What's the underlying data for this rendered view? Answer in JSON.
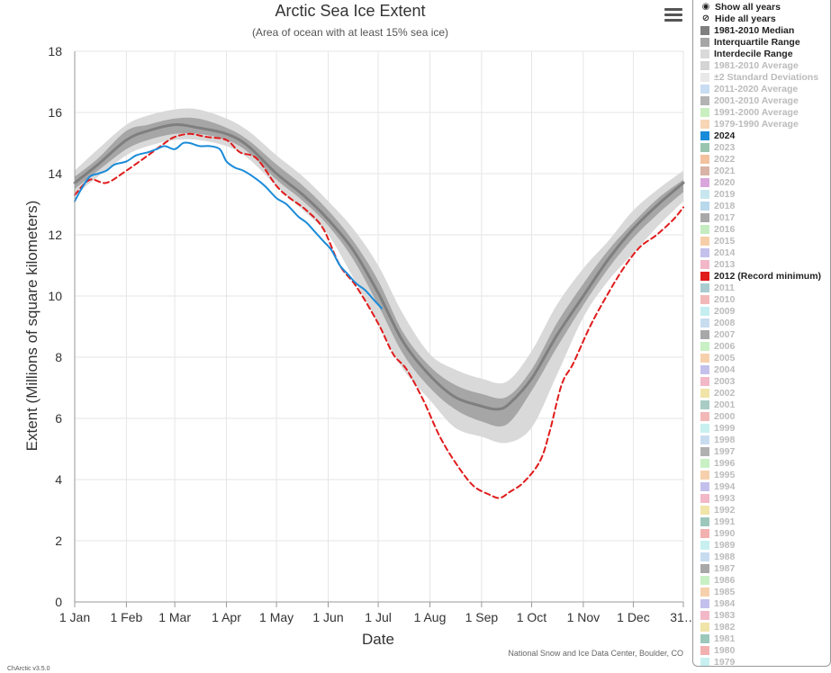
{
  "chart_data": {
    "type": "line",
    "title": "Arctic Sea Ice Extent",
    "subtitle": "(Area of ocean with at least 15% sea ice)",
    "xlabel": "Date",
    "ylabel": "Extent (Millions of square kilometers)",
    "ylim": [
      0,
      18
    ],
    "yticks": [
      0,
      2,
      4,
      6,
      8,
      10,
      12,
      14,
      16,
      18
    ],
    "xlim": [
      1,
      366
    ],
    "xticks": [
      {
        "day": 1,
        "label": "1 Jan"
      },
      {
        "day": 32,
        "label": "1 Feb"
      },
      {
        "day": 61,
        "label": "1 Mar"
      },
      {
        "day": 92,
        "label": "1 Apr"
      },
      {
        "day": 122,
        "label": "1 May"
      },
      {
        "day": 153,
        "label": "1 Jun"
      },
      {
        "day": 183,
        "label": "1 Jul"
      },
      {
        "day": 214,
        "label": "1 Aug"
      },
      {
        "day": 245,
        "label": "1 Sep"
      },
      {
        "day": 275,
        "label": "1 Oct"
      },
      {
        "day": 306,
        "label": "1 Nov"
      },
      {
        "day": 336,
        "label": "1 Dec"
      },
      {
        "day": 366,
        "label": "31…"
      }
    ],
    "grid": true,
    "credit": "National Snow and Ice Data Center, Boulder, CO",
    "series": [
      {
        "name": "Interdecile Range",
        "kind": "band",
        "color": "#d9d9d9",
        "x": [
          1,
          15,
          32,
          45,
          61,
          75,
          92,
          105,
          122,
          138,
          153,
          168,
          183,
          198,
          214,
          229,
          245,
          260,
          275,
          290,
          306,
          321,
          336,
          351,
          366
        ],
        "low": [
          13.3,
          13.9,
          14.6,
          14.9,
          15.1,
          15.1,
          14.9,
          14.5,
          13.6,
          12.8,
          12.0,
          10.6,
          9.1,
          7.6,
          6.6,
          5.7,
          5.4,
          5.2,
          5.7,
          7.4,
          9.3,
          10.5,
          11.4,
          12.3,
          13.1
        ],
        "high": [
          14.1,
          14.8,
          15.6,
          15.9,
          16.1,
          16.1,
          15.8,
          15.4,
          14.6,
          13.9,
          13.1,
          12.2,
          11.0,
          9.4,
          8.1,
          7.6,
          7.3,
          7.2,
          8.2,
          9.7,
          10.9,
          11.8,
          12.8,
          13.5,
          14.1
        ]
      },
      {
        "name": "Interquartile Range",
        "kind": "band",
        "color": "#a6a6a6",
        "x": [
          1,
          15,
          32,
          45,
          61,
          75,
          92,
          105,
          122,
          138,
          153,
          168,
          183,
          198,
          214,
          229,
          245,
          260,
          275,
          290,
          306,
          321,
          336,
          351,
          366
        ],
        "low": [
          13.5,
          14.1,
          14.8,
          15.1,
          15.3,
          15.3,
          15.1,
          14.7,
          13.8,
          13.1,
          12.3,
          11.2,
          9.7,
          8.1,
          7.0,
          6.3,
          5.9,
          5.8,
          6.9,
          8.3,
          9.7,
          10.9,
          11.9,
          12.7,
          13.4
        ],
        "high": [
          13.9,
          14.5,
          15.4,
          15.6,
          15.8,
          15.8,
          15.5,
          15.1,
          14.3,
          13.6,
          12.8,
          11.8,
          10.5,
          8.8,
          7.7,
          7.1,
          6.8,
          6.7,
          7.6,
          9.1,
          10.4,
          11.5,
          12.4,
          13.2,
          13.8
        ]
      },
      {
        "name": "1981-2010 Median",
        "kind": "line",
        "color": "#7f7f7f",
        "width": 3,
        "x": [
          1,
          15,
          32,
          45,
          61,
          75,
          92,
          105,
          122,
          138,
          153,
          168,
          183,
          198,
          214,
          229,
          245,
          255,
          262,
          275,
          290,
          306,
          321,
          336,
          351,
          366
        ],
        "values": [
          13.7,
          14.3,
          15.1,
          15.4,
          15.6,
          15.5,
          15.3,
          14.9,
          14.0,
          13.3,
          12.5,
          11.5,
          10.1,
          8.5,
          7.4,
          6.7,
          6.4,
          6.3,
          6.5,
          7.3,
          8.7,
          10.0,
          11.2,
          12.2,
          13.0,
          13.7
        ]
      },
      {
        "name": "2012 (Record minimum)",
        "kind": "line",
        "color": "#e01b1b",
        "width": 2,
        "dash": "6,4",
        "x": [
          1,
          10,
          20,
          32,
          45,
          55,
          61,
          70,
          80,
          92,
          100,
          110,
          122,
          130,
          140,
          150,
          160,
          170,
          183,
          192,
          200,
          210,
          220,
          230,
          240,
          250,
          256,
          262,
          270,
          280,
          286,
          293,
          300,
          310,
          320,
          330,
          340,
          350,
          360,
          366
        ],
        "values": [
          13.3,
          13.8,
          13.7,
          14.1,
          14.6,
          15.0,
          15.2,
          15.3,
          15.2,
          15.1,
          14.7,
          14.5,
          13.6,
          13.2,
          12.8,
          12.2,
          11.0,
          10.3,
          9.1,
          8.1,
          7.6,
          6.6,
          5.4,
          4.5,
          3.8,
          3.5,
          3.4,
          3.6,
          3.9,
          4.6,
          5.6,
          7.1,
          7.8,
          9.0,
          10.0,
          10.9,
          11.6,
          12.0,
          12.5,
          12.9
        ]
      },
      {
        "name": "2024",
        "kind": "line",
        "color": "#1a8bd9",
        "width": 2,
        "x": [
          1,
          5,
          10,
          15,
          20,
          25,
          32,
          38,
          45,
          50,
          55,
          61,
          66,
          70,
          76,
          82,
          88,
          92,
          97,
          102,
          108,
          115,
          122,
          128,
          135,
          140,
          145,
          150,
          155,
          160,
          165,
          170,
          175,
          180,
          185
        ],
        "values": [
          13.1,
          13.5,
          13.9,
          14.0,
          14.1,
          14.3,
          14.4,
          14.6,
          14.7,
          14.8,
          14.9,
          14.8,
          15.0,
          15.0,
          14.9,
          14.9,
          14.8,
          14.4,
          14.2,
          14.1,
          13.9,
          13.6,
          13.2,
          13.0,
          12.6,
          12.4,
          12.1,
          11.8,
          11.5,
          11.0,
          10.7,
          10.4,
          10.2,
          9.9,
          9.6
        ]
      }
    ]
  },
  "menu": {
    "icon": "hamburger-menu-icon"
  },
  "legend": {
    "controls": [
      {
        "label": "Show all years",
        "icon": "eye-icon"
      },
      {
        "label": "Hide all years",
        "icon": "eye-slash-icon"
      }
    ],
    "items": [
      {
        "label": "1981-2010 Median",
        "color": "#7f7f7f",
        "active": true
      },
      {
        "label": "Interquartile Range",
        "color": "#a6a6a6",
        "active": true
      },
      {
        "label": "Interdecile Range",
        "color": "#d9d9d9",
        "active": true
      },
      {
        "label": "1981-2010 Average",
        "color": "#d4d4d4",
        "active": false
      },
      {
        "label": "±2 Standard Deviations",
        "color": "#e8e8e8",
        "active": false
      },
      {
        "label": "2011-2020 Average",
        "color": "#c8dcf2",
        "active": false
      },
      {
        "label": "2001-2010 Average",
        "color": "#b3b3b3",
        "active": false
      },
      {
        "label": "1991-2000 Average",
        "color": "#c9efc0",
        "active": false
      },
      {
        "label": "1979-1990 Average",
        "color": "#f7d6b5",
        "active": false
      },
      {
        "label": "2024",
        "color": "#1a8bd9",
        "active": true
      },
      {
        "label": "2023",
        "color": "#99c4b0",
        "active": false
      },
      {
        "label": "2022",
        "color": "#f2c19e",
        "active": false
      },
      {
        "label": "2021",
        "color": "#d8b3a6",
        "active": false
      },
      {
        "label": "2020",
        "color": "#d9a6dc",
        "active": false
      },
      {
        "label": "2019",
        "color": "#c8e6ee",
        "active": false
      },
      {
        "label": "2018",
        "color": "#b8d8ec",
        "active": false
      },
      {
        "label": "2017",
        "color": "#a8a8a8",
        "active": false
      },
      {
        "label": "2016",
        "color": "#c4ecc0",
        "active": false
      },
      {
        "label": "2015",
        "color": "#f6cfa8",
        "active": false
      },
      {
        "label": "2014",
        "color": "#c4c0ec",
        "active": false
      },
      {
        "label": "2013",
        "color": "#f2b8c8",
        "active": false
      },
      {
        "label": "2012 (Record minimum)",
        "color": "#e01b1b",
        "active": true
      },
      {
        "label": "2011",
        "color": "#a9ccd0",
        "active": false
      },
      {
        "label": "2010",
        "color": "#f2b8b8",
        "active": false
      },
      {
        "label": "2009",
        "color": "#c4eef0",
        "active": false
      },
      {
        "label": "2008",
        "color": "#c8dcf0",
        "active": false
      },
      {
        "label": "2007",
        "color": "#a8a8a8",
        "active": false
      },
      {
        "label": "2006",
        "color": "#c8f0c4",
        "active": false
      },
      {
        "label": "2005",
        "color": "#f6d0ac",
        "active": false
      },
      {
        "label": "2004",
        "color": "#c4c0ec",
        "active": false
      },
      {
        "label": "2003",
        "color": "#f2b8c8",
        "active": false
      },
      {
        "label": "2002",
        "color": "#f0e4a8",
        "active": false
      },
      {
        "label": "2001",
        "color": "#a9ccc4",
        "active": false
      },
      {
        "label": "2000",
        "color": "#f2b8b8",
        "active": false
      },
      {
        "label": "1999",
        "color": "#c8f0f0",
        "active": false
      },
      {
        "label": "1998",
        "color": "#c8dcf0",
        "active": false
      },
      {
        "label": "1997",
        "color": "#b0b0b0",
        "active": false
      },
      {
        "label": "1996",
        "color": "#c8f0c4",
        "active": false
      },
      {
        "label": "1995",
        "color": "#f6d0ac",
        "active": false
      },
      {
        "label": "1994",
        "color": "#c4c0ec",
        "active": false
      },
      {
        "label": "1993",
        "color": "#f2b8c8",
        "active": false
      },
      {
        "label": "1992",
        "color": "#f0e4a8",
        "active": false
      },
      {
        "label": "1991",
        "color": "#9cc8bc",
        "active": false
      },
      {
        "label": "1990",
        "color": "#f2b0b0",
        "active": false
      },
      {
        "label": "1989",
        "color": "#c8f0f0",
        "active": false
      },
      {
        "label": "1988",
        "color": "#c8dcf0",
        "active": false
      },
      {
        "label": "1987",
        "color": "#a8a8a8",
        "active": false
      },
      {
        "label": "1986",
        "color": "#c8f0c4",
        "active": false
      },
      {
        "label": "1985",
        "color": "#f6d0ac",
        "active": false
      },
      {
        "label": "1984",
        "color": "#c4c0ec",
        "active": false
      },
      {
        "label": "1983",
        "color": "#f2b8c8",
        "active": false
      },
      {
        "label": "1982",
        "color": "#f0e4a8",
        "active": false
      },
      {
        "label": "1981",
        "color": "#9cc8bc",
        "active": false
      },
      {
        "label": "1980",
        "color": "#f2b0b0",
        "active": false
      },
      {
        "label": "1979",
        "color": "#c8f0f0",
        "active": false
      }
    ]
  },
  "footer": {
    "version": "ChArctic v3.5.0"
  }
}
